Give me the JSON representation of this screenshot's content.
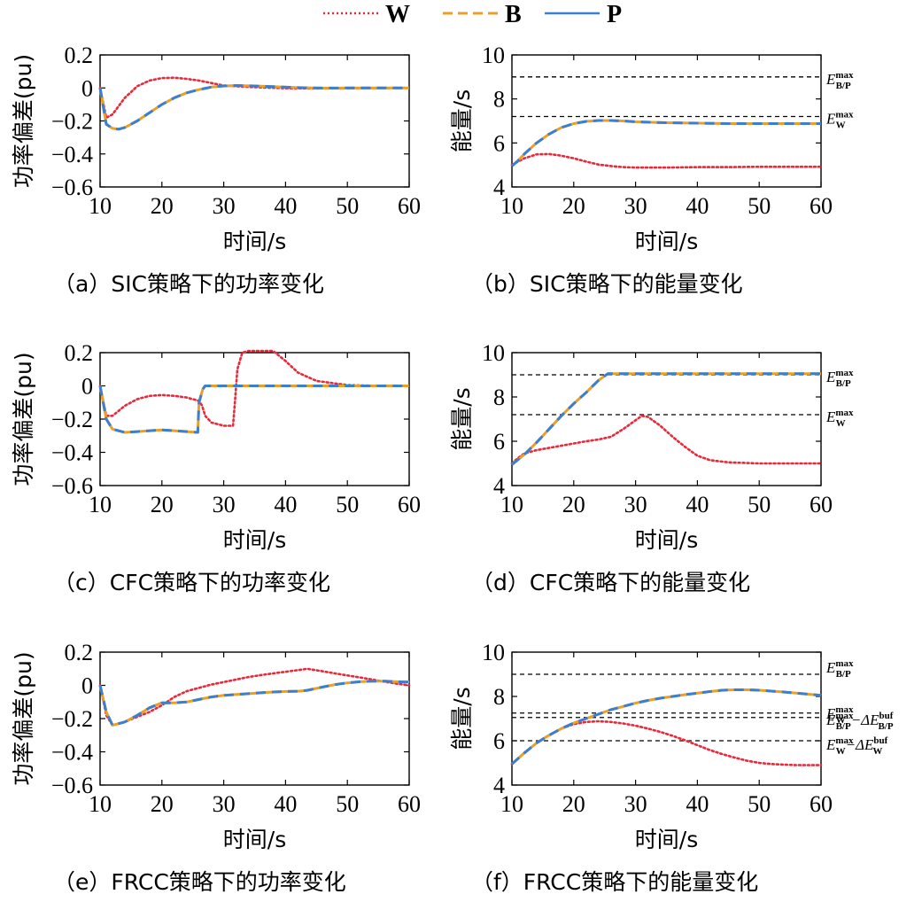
{
  "legend": [
    {
      "name": "W",
      "color": "#e8293a",
      "style": "dotted"
    },
    {
      "name": "B",
      "color": "#e8a02a",
      "style": "dashed"
    },
    {
      "name": "P",
      "color": "#3a7fd0",
      "style": "solid"
    }
  ],
  "chart_data": [
    {
      "id": "a",
      "type": "line",
      "caption": "（a）SIC策略下的功率变化",
      "xlabel": "时间/s",
      "ylabel": "功率偏差(pu)",
      "xlim": [
        10,
        60
      ],
      "ylim": [
        -0.6,
        0.2
      ],
      "xticks": [
        "10",
        "20",
        "30",
        "40",
        "50",
        "60"
      ],
      "yticks": [
        "0.2",
        "0",
        "−0.2",
        "−0.4",
        "−0.6"
      ],
      "references": [],
      "series": [
        {
          "name": "W",
          "x": [
            10,
            11,
            12,
            14,
            16,
            18,
            20,
            22,
            24,
            26,
            28,
            30,
            33,
            36,
            40,
            45,
            50,
            60
          ],
          "y": [
            0,
            -0.18,
            -0.16,
            -0.06,
            0.01,
            0.045,
            0.06,
            0.062,
            0.055,
            0.045,
            0.03,
            0.015,
            0.008,
            0.003,
            -0.002,
            -0.003,
            -0.002,
            0
          ]
        },
        {
          "name": "B",
          "x": [
            10,
            11,
            12,
            13,
            14,
            16,
            18,
            20,
            22,
            24,
            26,
            28,
            30,
            32,
            35,
            38,
            42,
            46,
            50,
            60
          ],
          "y": [
            0,
            -0.22,
            -0.245,
            -0.25,
            -0.24,
            -0.2,
            -0.15,
            -0.1,
            -0.06,
            -0.03,
            -0.01,
            0.005,
            0.012,
            0.015,
            0.012,
            0.008,
            0.002,
            -0.001,
            0,
            0
          ]
        },
        {
          "name": "P",
          "x": [
            10,
            11,
            12,
            13,
            14,
            16,
            18,
            20,
            22,
            24,
            26,
            28,
            30,
            32,
            35,
            38,
            42,
            46,
            50,
            60
          ],
          "y": [
            0,
            -0.22,
            -0.245,
            -0.25,
            -0.24,
            -0.2,
            -0.15,
            -0.1,
            -0.06,
            -0.03,
            -0.01,
            0.005,
            0.012,
            0.015,
            0.012,
            0.008,
            0.002,
            -0.001,
            0,
            0
          ]
        }
      ]
    },
    {
      "id": "b",
      "type": "line",
      "caption": "（b）SIC策略下的能量变化",
      "xlabel": "时间/s",
      "ylabel": "能量/s",
      "xlim": [
        10,
        60
      ],
      "ylim": [
        4,
        10
      ],
      "xticks": [
        "10",
        "20",
        "30",
        "40",
        "50",
        "60"
      ],
      "yticks": [
        "10",
        "8",
        "6",
        "4"
      ],
      "references": [
        {
          "y": 9.0,
          "label": "E",
          "sup": "max",
          "sub": "B/P"
        },
        {
          "y": 7.2,
          "label": "E",
          "sup": "max",
          "sub": "W"
        }
      ],
      "series": [
        {
          "name": "W",
          "x": [
            10,
            11,
            12,
            14,
            16,
            18,
            20,
            22,
            24,
            26,
            28,
            30,
            35,
            40,
            45,
            50,
            55,
            60
          ],
          "y": [
            5.0,
            5.15,
            5.3,
            5.48,
            5.5,
            5.42,
            5.3,
            5.15,
            5.02,
            4.95,
            4.9,
            4.88,
            4.88,
            4.9,
            4.9,
            4.92,
            4.92,
            4.92
          ]
        },
        {
          "name": "B",
          "x": [
            10,
            11,
            12,
            14,
            16,
            18,
            20,
            22,
            24,
            26,
            28,
            30,
            35,
            40,
            45,
            50,
            55,
            60
          ],
          "y": [
            4.95,
            5.2,
            5.5,
            6.0,
            6.4,
            6.7,
            6.88,
            6.98,
            7.02,
            7.02,
            7.0,
            6.96,
            6.92,
            6.9,
            6.88,
            6.88,
            6.88,
            6.88
          ]
        },
        {
          "name": "P",
          "x": [
            10,
            11,
            12,
            14,
            16,
            18,
            20,
            22,
            24,
            26,
            28,
            30,
            35,
            40,
            45,
            50,
            55,
            60
          ],
          "y": [
            4.95,
            5.2,
            5.5,
            6.0,
            6.4,
            6.7,
            6.88,
            6.98,
            7.02,
            7.02,
            7.0,
            6.96,
            6.92,
            6.9,
            6.88,
            6.88,
            6.88,
            6.88
          ]
        }
      ]
    },
    {
      "id": "c",
      "type": "line",
      "caption": "（c）CFC策略下的功率变化",
      "xlabel": "时间/s",
      "ylabel": "功率偏差(pu)",
      "xlim": [
        10,
        60
      ],
      "ylim": [
        -0.6,
        0.2
      ],
      "xticks": [
        "10",
        "20",
        "30",
        "40",
        "50",
        "60"
      ],
      "yticks": [
        "0.2",
        "0",
        "−0.2",
        "−0.4",
        "−0.6"
      ],
      "references": [],
      "series": [
        {
          "name": "W",
          "x": [
            10,
            11,
            12,
            14,
            16,
            18,
            20,
            22,
            24,
            26,
            26.5,
            27,
            28,
            30,
            31.5,
            31.8,
            32.2,
            33,
            34,
            36,
            38,
            40,
            42,
            45,
            50,
            55,
            60
          ],
          "y": [
            0,
            -0.18,
            -0.18,
            -0.12,
            -0.08,
            -0.06,
            -0.055,
            -0.06,
            -0.07,
            -0.09,
            -0.12,
            -0.18,
            -0.22,
            -0.24,
            -0.24,
            -0.1,
            0.1,
            0.2,
            0.21,
            0.21,
            0.21,
            0.15,
            0.08,
            0.03,
            0.005,
            0,
            0
          ]
        },
        {
          "name": "B",
          "x": [
            10,
            11,
            12,
            14,
            16,
            18,
            20,
            22,
            24,
            25.8,
            26,
            26.6,
            27,
            28,
            30,
            40,
            50,
            60
          ],
          "y": [
            0,
            -0.2,
            -0.26,
            -0.28,
            -0.275,
            -0.27,
            -0.265,
            -0.27,
            -0.275,
            -0.28,
            -0.1,
            -0.02,
            0,
            0,
            0,
            0,
            0,
            0
          ]
        },
        {
          "name": "P",
          "x": [
            10,
            11,
            12,
            14,
            16,
            18,
            20,
            22,
            24,
            25.8,
            26,
            26.6,
            27,
            28,
            30,
            40,
            50,
            60
          ],
          "y": [
            0,
            -0.2,
            -0.26,
            -0.28,
            -0.275,
            -0.27,
            -0.265,
            -0.27,
            -0.275,
            -0.28,
            -0.1,
            -0.02,
            0,
            0,
            0,
            0,
            0,
            0
          ]
        }
      ]
    },
    {
      "id": "d",
      "type": "line",
      "caption": "（d）CFC策略下的能量变化",
      "xlabel": "时间/s",
      "ylabel": "能量/s",
      "xlim": [
        10,
        60
      ],
      "ylim": [
        4,
        10
      ],
      "xticks": [
        "10",
        "20",
        "30",
        "40",
        "50",
        "60"
      ],
      "yticks": [
        "10",
        "8",
        "6",
        "4"
      ],
      "references": [
        {
          "y": 9.0,
          "label": "E",
          "sup": "max",
          "sub": "B/P"
        },
        {
          "y": 7.2,
          "label": "E",
          "sup": "max",
          "sub": "W"
        }
      ],
      "series": [
        {
          "name": "W",
          "x": [
            10,
            11,
            12,
            14,
            16,
            18,
            20,
            22,
            24,
            26,
            28,
            30,
            31,
            32,
            34,
            36,
            38,
            40,
            42,
            45,
            50,
            55,
            60
          ],
          "y": [
            5.0,
            5.25,
            5.45,
            5.6,
            5.7,
            5.8,
            5.9,
            6.0,
            6.08,
            6.2,
            6.55,
            6.95,
            7.15,
            7.1,
            6.7,
            6.2,
            5.75,
            5.35,
            5.15,
            5.05,
            5.0,
            5.0,
            5.0
          ]
        },
        {
          "name": "B",
          "x": [
            10,
            12,
            14,
            16,
            18,
            20,
            22,
            24,
            25.5,
            26,
            30,
            40,
            50,
            60
          ],
          "y": [
            4.95,
            5.4,
            5.95,
            6.55,
            7.15,
            7.7,
            8.2,
            8.75,
            9.05,
            9.05,
            9.05,
            9.05,
            9.05,
            9.05
          ]
        },
        {
          "name": "P",
          "x": [
            10,
            12,
            14,
            16,
            18,
            20,
            22,
            24,
            25.5,
            26,
            30,
            40,
            50,
            60
          ],
          "y": [
            4.95,
            5.4,
            5.95,
            6.55,
            7.15,
            7.7,
            8.2,
            8.75,
            9.05,
            9.05,
            9.05,
            9.05,
            9.05,
            9.05
          ]
        }
      ]
    },
    {
      "id": "e",
      "type": "line",
      "caption": "（e）FRCC策略下的功率变化",
      "xlabel": "时间/s",
      "ylabel": "功率偏差(pu)",
      "xlim": [
        10,
        60
      ],
      "ylim": [
        -0.6,
        0.2
      ],
      "xticks": [
        "10",
        "20",
        "30",
        "40",
        "50",
        "60"
      ],
      "yticks": [
        "0.2",
        "0",
        "−0.2",
        "−0.4",
        "−0.6"
      ],
      "references": [],
      "series": [
        {
          "name": "W",
          "x": [
            10,
            11,
            12,
            14,
            16,
            18,
            20,
            22,
            24,
            26,
            28,
            30,
            32,
            34,
            36,
            38,
            40,
            42,
            43.5,
            46,
            48,
            50,
            52,
            54,
            56,
            58,
            60
          ],
          "y": [
            0,
            -0.18,
            -0.24,
            -0.22,
            -0.19,
            -0.16,
            -0.12,
            -0.07,
            -0.035,
            -0.015,
            0.005,
            0.02,
            0.035,
            0.05,
            0.062,
            0.072,
            0.082,
            0.092,
            0.1,
            0.085,
            0.072,
            0.06,
            0.048,
            0.035,
            0.022,
            0.01,
            0
          ]
        },
        {
          "name": "B",
          "x": [
            10,
            11,
            12,
            14,
            16,
            18,
            20,
            22,
            24,
            26,
            28,
            30,
            32,
            34,
            36,
            38,
            40,
            42,
            43.5,
            46,
            48,
            50,
            52,
            54,
            56,
            58,
            60
          ],
          "y": [
            0,
            -0.16,
            -0.24,
            -0.22,
            -0.18,
            -0.135,
            -0.105,
            -0.105,
            -0.1,
            -0.085,
            -0.07,
            -0.06,
            -0.055,
            -0.05,
            -0.045,
            -0.04,
            -0.037,
            -0.035,
            -0.03,
            -0.01,
            0.005,
            0.015,
            0.022,
            0.025,
            0.025,
            0.022,
            0.02
          ]
        },
        {
          "name": "P",
          "x": [
            10,
            11,
            12,
            14,
            16,
            18,
            20,
            22,
            24,
            26,
            28,
            30,
            32,
            34,
            36,
            38,
            40,
            42,
            43.5,
            46,
            48,
            50,
            52,
            54,
            56,
            58,
            60
          ],
          "y": [
            0,
            -0.16,
            -0.24,
            -0.22,
            -0.18,
            -0.135,
            -0.105,
            -0.105,
            -0.1,
            -0.085,
            -0.07,
            -0.06,
            -0.055,
            -0.05,
            -0.045,
            -0.04,
            -0.037,
            -0.035,
            -0.03,
            -0.01,
            0.005,
            0.015,
            0.022,
            0.025,
            0.025,
            0.022,
            0.02
          ]
        }
      ]
    },
    {
      "id": "f",
      "type": "line",
      "caption": "（f）FRCC策略下的能量变化",
      "xlabel": "时间/s",
      "ylabel": "能量/s",
      "xlim": [
        10,
        60
      ],
      "ylim": [
        4,
        10
      ],
      "xticks": [
        "10",
        "20",
        "30",
        "40",
        "50",
        "60"
      ],
      "yticks": [
        "10",
        "8",
        "6",
        "4"
      ],
      "references": [
        {
          "y": 9.0,
          "label": "E",
          "sup": "max",
          "sub": "B/P"
        },
        {
          "y": 7.25,
          "label": "E",
          "sup": "max",
          "sub": "W"
        },
        {
          "y": 7.05,
          "label": "E",
          "sup": "max",
          "sub": "B/P",
          "minus": "−ΔE",
          "msup": "buf",
          "msub": "B/P"
        },
        {
          "y": 6.0,
          "label": "E",
          "sup": "max",
          "sub": "W",
          "minus": "−ΔE",
          "msup": "buf",
          "msub": "W"
        }
      ],
      "series": [
        {
          "name": "W",
          "x": [
            10,
            12,
            14,
            16,
            18,
            20,
            22,
            24,
            26,
            28,
            30,
            32,
            34,
            36,
            38,
            40,
            42,
            44,
            46,
            48,
            50,
            52,
            54,
            56,
            58,
            60
          ],
          "y": [
            4.95,
            5.45,
            5.9,
            6.25,
            6.55,
            6.75,
            6.85,
            6.88,
            6.85,
            6.78,
            6.68,
            6.55,
            6.4,
            6.22,
            6.02,
            5.8,
            5.58,
            5.4,
            5.24,
            5.1,
            5.0,
            4.95,
            4.92,
            4.9,
            4.9,
            4.9
          ]
        },
        {
          "name": "B",
          "x": [
            10,
            12,
            14,
            16,
            18,
            20,
            22,
            24,
            26,
            28,
            30,
            32,
            34,
            36,
            38,
            40,
            42,
            44,
            46,
            48,
            50,
            52,
            54,
            56,
            58,
            60
          ],
          "y": [
            4.95,
            5.45,
            5.9,
            6.25,
            6.55,
            6.8,
            7.0,
            7.2,
            7.4,
            7.55,
            7.7,
            7.82,
            7.92,
            8.0,
            8.08,
            8.15,
            8.22,
            8.28,
            8.3,
            8.3,
            8.28,
            8.24,
            8.2,
            8.15,
            8.1,
            8.05
          ]
        },
        {
          "name": "P",
          "x": [
            10,
            12,
            14,
            16,
            18,
            20,
            22,
            24,
            26,
            28,
            30,
            32,
            34,
            36,
            38,
            40,
            42,
            44,
            46,
            48,
            50,
            52,
            54,
            56,
            58,
            60
          ],
          "y": [
            4.95,
            5.45,
            5.9,
            6.25,
            6.55,
            6.8,
            7.0,
            7.2,
            7.4,
            7.55,
            7.7,
            7.82,
            7.92,
            8.0,
            8.08,
            8.15,
            8.22,
            8.28,
            8.3,
            8.3,
            8.28,
            8.24,
            8.2,
            8.15,
            8.1,
            8.05
          ]
        }
      ]
    }
  ]
}
